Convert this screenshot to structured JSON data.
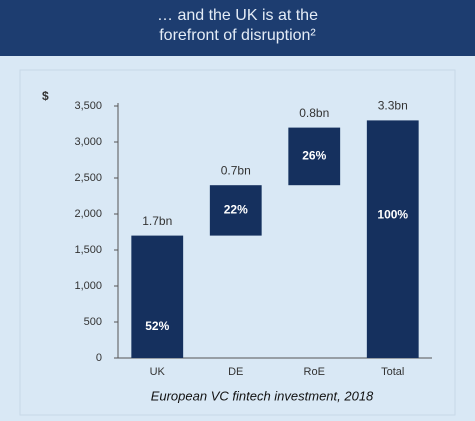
{
  "chart_data": {
    "type": "waterfall",
    "title": "… and the UK is at the forefront of disruption²",
    "y_label": "$",
    "caption": "European VC fintech investment, 2018",
    "categories": [
      "UK",
      "DE",
      "RoE",
      "Total"
    ],
    "values": [
      1700,
      700,
      800,
      3300
    ],
    "value_labels": [
      "1.7bn",
      "0.7bn",
      "0.8bn",
      "3.3bn"
    ],
    "share_labels": [
      "52%",
      "22%",
      "26%",
      "100%"
    ],
    "totals": [
      false,
      false,
      false,
      true
    ],
    "color": "#15305e",
    "ylim": [
      0,
      3500
    ],
    "yticks": [
      0,
      500,
      {
        "value": 1000,
        "label": "1,000"
      },
      {
        "value": 1500,
        "label": "1,500"
      },
      {
        "value": 2000,
        "label": "2,000"
      },
      {
        "value": 2500,
        "label": "2,500"
      },
      {
        "value": 3000,
        "label": "3,000"
      },
      {
        "value": 3500,
        "label": "3,500"
      }
    ]
  }
}
